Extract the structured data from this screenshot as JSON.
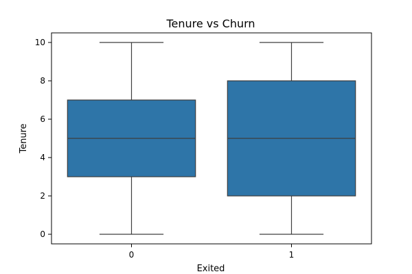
{
  "chart_data": {
    "type": "boxplot",
    "title": "Tenure vs Churn",
    "xlabel": "Exited",
    "ylabel": "Tenure",
    "categories": [
      "0",
      "1"
    ],
    "boxes": [
      {
        "category": "0",
        "min": 0,
        "q1": 3,
        "median": 5,
        "q3": 7,
        "max": 10
      },
      {
        "category": "1",
        "min": 0,
        "q1": 2,
        "median": 5,
        "q3": 8,
        "max": 10
      }
    ],
    "ylim": [
      -0.5,
      10.5
    ],
    "yticks": [
      0,
      2,
      4,
      6,
      8,
      10
    ],
    "box_color": "#2e75a8",
    "line_color": "#3d3d3d",
    "grid": false,
    "legend": "none"
  }
}
